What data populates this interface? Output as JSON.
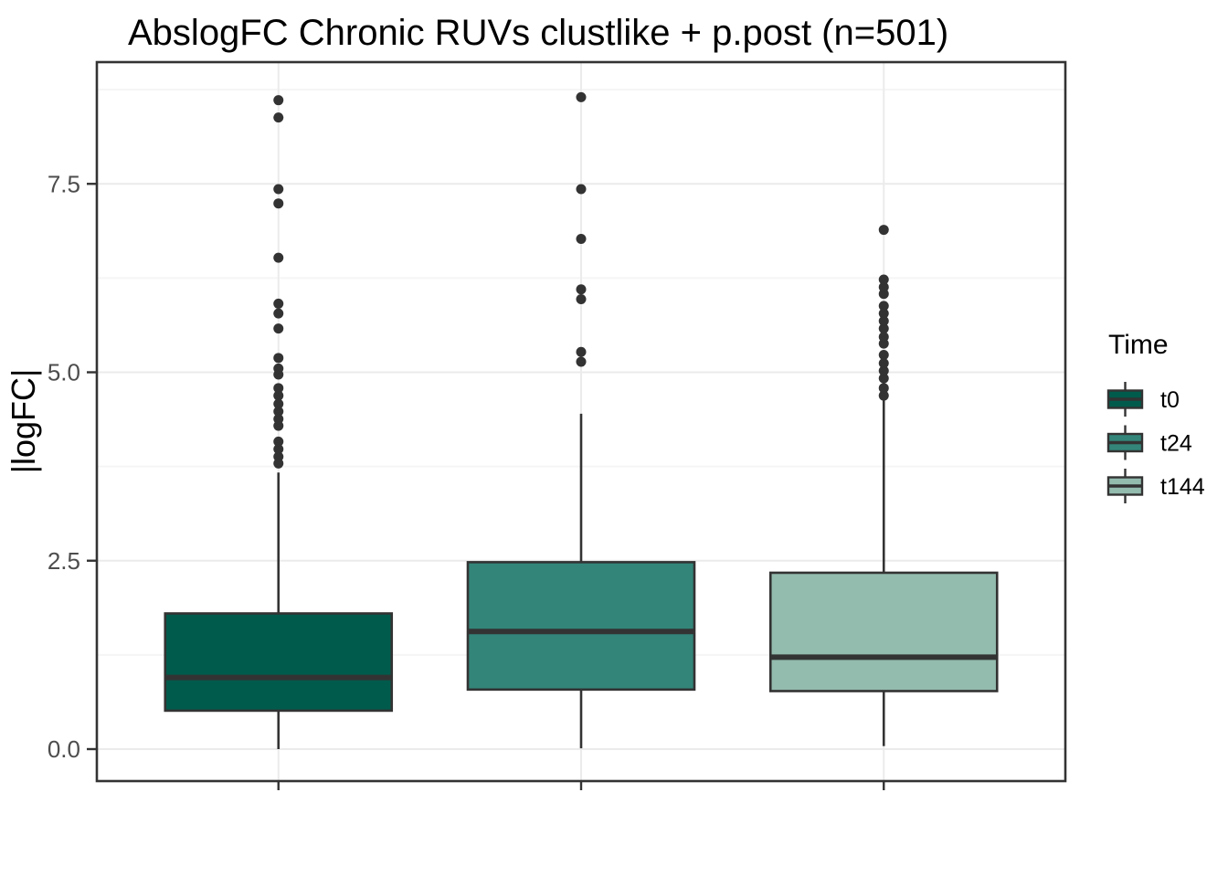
{
  "chart_data": {
    "type": "boxplot",
    "title": "AbslogFC Chronic RUVs clustlike + p.post (n=501)",
    "xlabel": "",
    "ylabel": "|logFC|",
    "ylim": [
      -0.4,
      9.1
    ],
    "y_ticks": [
      {
        "value": 0.0,
        "label": "0.0"
      },
      {
        "value": 2.5,
        "label": "2.5"
      },
      {
        "value": 5.0,
        "label": "5.0"
      },
      {
        "value": 7.5,
        "label": "7.5"
      }
    ],
    "y_minor_gridlines": [
      1.25,
      3.75,
      6.25,
      8.75
    ],
    "grid": "horizontal major and minor gridlines; vertical major gridline at each category",
    "x_tick_labels_visible": false,
    "legend_title": "Time",
    "legend_position": "right",
    "categories": [
      "t0",
      "t24",
      "t144"
    ],
    "series": [
      {
        "name": "t0",
        "fill": "#005B4C",
        "whisker_low": 0.0,
        "q1": 0.51,
        "median": 0.95,
        "q3": 1.8,
        "whisker_high": 3.67,
        "outliers": [
          3.79,
          3.88,
          3.98,
          4.08,
          4.29,
          4.38,
          4.48,
          4.58,
          4.69,
          4.79,
          4.97,
          5.05,
          5.19,
          5.58,
          5.78,
          5.91,
          6.52,
          7.24,
          7.43,
          8.38,
          8.61
        ]
      },
      {
        "name": "t24",
        "fill": "#338579",
        "whisker_low": 0.01,
        "q1": 0.79,
        "median": 1.56,
        "q3": 2.48,
        "whisker_high": 4.45,
        "outliers": [
          5.14,
          5.27,
          5.97,
          6.1,
          6.77,
          7.43,
          8.65
        ]
      },
      {
        "name": "t144",
        "fill": "#93BBAE",
        "whisker_low": 0.04,
        "q1": 0.77,
        "median": 1.22,
        "q3": 2.34,
        "whisker_high": 4.63,
        "outliers": [
          4.69,
          4.79,
          4.92,
          5.02,
          5.12,
          5.23,
          5.38,
          5.47,
          5.58,
          5.68,
          5.78,
          5.88,
          6.04,
          6.13,
          6.23,
          6.89
        ]
      }
    ],
    "style": {
      "box_border_color": "#333333",
      "median_color": "#333333",
      "whisker_color": "#333333",
      "outlier_color": "#333333",
      "grid_major_color": "#EBEBEB",
      "grid_minor_color": "#F5F5F5",
      "panel_border_color": "#333333",
      "axis_tick_color": "#333333",
      "tick_label_color": "#4D4D4D",
      "title_color": "#000000",
      "legend_text_color": "#000000",
      "background": "#FFFFFF"
    }
  }
}
